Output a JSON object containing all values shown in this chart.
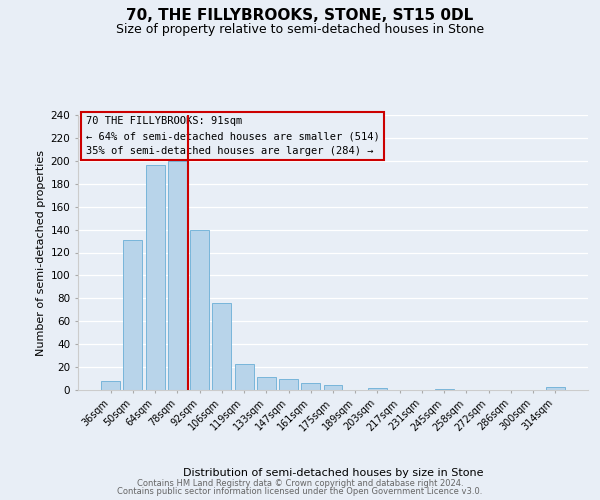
{
  "title": "70, THE FILLYBROOKS, STONE, ST15 0DL",
  "subtitle": "Size of property relative to semi-detached houses in Stone",
  "xlabel": "Distribution of semi-detached houses by size in Stone",
  "ylabel": "Number of semi-detached properties",
  "categories": [
    "36sqm",
    "50sqm",
    "64sqm",
    "78sqm",
    "92sqm",
    "106sqm",
    "119sqm",
    "133sqm",
    "147sqm",
    "161sqm",
    "175sqm",
    "189sqm",
    "203sqm",
    "217sqm",
    "231sqm",
    "245sqm",
    "258sqm",
    "272sqm",
    "286sqm",
    "300sqm",
    "314sqm"
  ],
  "values": [
    8,
    131,
    196,
    200,
    140,
    76,
    23,
    11,
    10,
    6,
    4,
    0,
    2,
    0,
    0,
    1,
    0,
    0,
    0,
    0,
    3
  ],
  "bar_color": "#b8d4ea",
  "bar_edge_color": "#6aaed6",
  "vline_color": "#cc0000",
  "vline_at_index": 4,
  "annotation_line1": "70 THE FILLYBROOKS: 91sqm",
  "annotation_line2": "← 64% of semi-detached houses are smaller (514)",
  "annotation_line3": "35% of semi-detached houses are larger (284) →",
  "box_edge_color": "#cc0000",
  "ylim": [
    0,
    240
  ],
  "yticks": [
    0,
    20,
    40,
    60,
    80,
    100,
    120,
    140,
    160,
    180,
    200,
    220,
    240
  ],
  "bg_color": "#e8eef6",
  "grid_color": "#ffffff",
  "footer_line1": "Contains HM Land Registry data © Crown copyright and database right 2024.",
  "footer_line2": "Contains public sector information licensed under the Open Government Licence v3.0."
}
